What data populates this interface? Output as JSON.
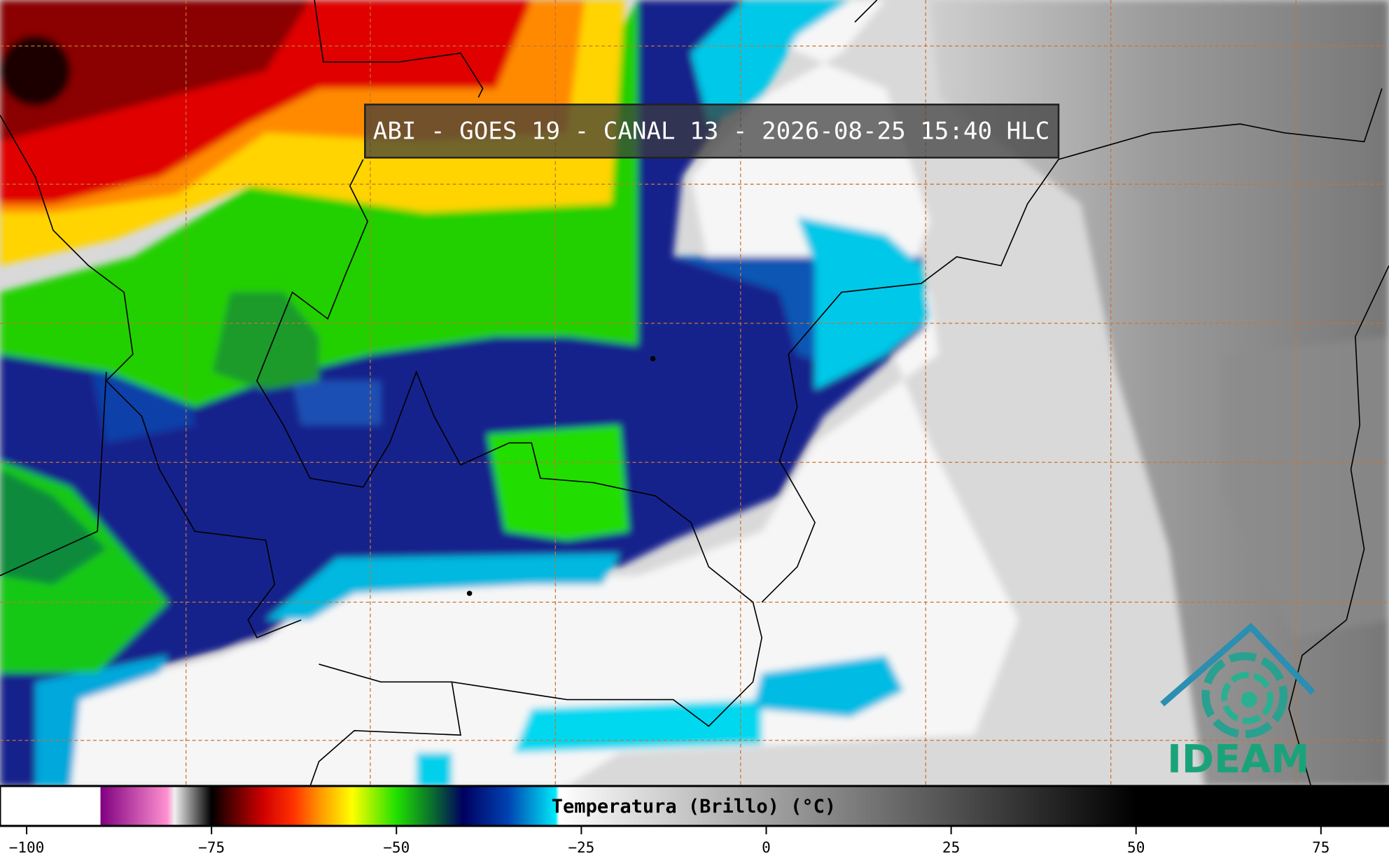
{
  "header": {
    "title": "ABI - GOES 19 - CANAL 13 - 2026-08-25 15:40 HLC"
  },
  "colorbar": {
    "label": "Temperatura (Brillo) (°C)",
    "xlim": [
      -103.6,
      84.2
    ],
    "xticks": [
      {
        "value": -100,
        "label": "−100"
      },
      {
        "value": -75,
        "label": "−75"
      },
      {
        "value": -50,
        "label": "−50"
      },
      {
        "value": -25,
        "label": "−25"
      },
      0,
      25,
      50,
      75
    ]
  },
  "logo": {
    "text": "IDEAM"
  }
}
